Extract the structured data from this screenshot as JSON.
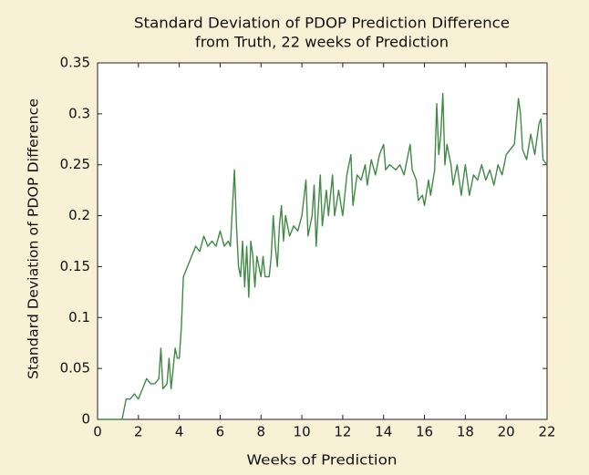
{
  "chart_data": {
    "type": "line",
    "title": [
      "Standard Deviation of PDOP Prediction Difference",
      "from Truth, 22 weeks of Prediction"
    ],
    "xlabel": "Weeks of Prediction",
    "ylabel": "Standard Deviation of PDOP Difference",
    "x": [
      0,
      1.2,
      1.3,
      1.4,
      1.6,
      1.8,
      2.0,
      2.2,
      2.4,
      2.6,
      2.8,
      3.0,
      3.1,
      3.2,
      3.4,
      3.5,
      3.6,
      3.7,
      3.8,
      3.9,
      4.0,
      4.1,
      4.2,
      4.4,
      4.6,
      4.8,
      5.0,
      5.2,
      5.4,
      5.6,
      5.8,
      6.0,
      6.2,
      6.4,
      6.5,
      6.7,
      6.8,
      6.9,
      7.0,
      7.1,
      7.2,
      7.3,
      7.4,
      7.5,
      7.6,
      7.7,
      7.8,
      7.9,
      8.0,
      8.1,
      8.2,
      8.4,
      8.5,
      8.6,
      8.7,
      8.8,
      8.9,
      9.0,
      9.1,
      9.2,
      9.4,
      9.6,
      9.8,
      10.0,
      10.2,
      10.3,
      10.5,
      10.6,
      10.7,
      10.9,
      11.0,
      11.2,
      11.3,
      11.5,
      11.6,
      11.8,
      12.0,
      12.2,
      12.4,
      12.5,
      12.7,
      12.9,
      13.1,
      13.2,
      13.4,
      13.6,
      13.8,
      14.0,
      14.1,
      14.3,
      14.6,
      14.8,
      15.0,
      15.2,
      15.3,
      15.4,
      15.6,
      15.7,
      15.9,
      16.0,
      16.2,
      16.3,
      16.5,
      16.6,
      16.7,
      16.8,
      16.9,
      17.0,
      17.1,
      17.3,
      17.4,
      17.6,
      17.8,
      18.0,
      18.2,
      18.4,
      18.6,
      18.8,
      19.0,
      19.2,
      19.4,
      19.6,
      19.8,
      20.0,
      20.2,
      20.4,
      20.6,
      20.7,
      20.8,
      21.0,
      21.2,
      21.4,
      21.6,
      21.7,
      21.8,
      22.0
    ],
    "values": [
      0,
      0,
      0.01,
      0.02,
      0.02,
      0.025,
      0.02,
      0.03,
      0.04,
      0.035,
      0.035,
      0.04,
      0.07,
      0.03,
      0.035,
      0.06,
      0.03,
      0.05,
      0.07,
      0.06,
      0.06,
      0.09,
      0.14,
      0.15,
      0.16,
      0.17,
      0.165,
      0.18,
      0.17,
      0.175,
      0.17,
      0.185,
      0.17,
      0.175,
      0.17,
      0.245,
      0.19,
      0.15,
      0.14,
      0.175,
      0.13,
      0.17,
      0.12,
      0.175,
      0.16,
      0.13,
      0.16,
      0.15,
      0.14,
      0.16,
      0.14,
      0.14,
      0.16,
      0.2,
      0.17,
      0.15,
      0.19,
      0.21,
      0.175,
      0.2,
      0.18,
      0.19,
      0.185,
      0.2,
      0.235,
      0.18,
      0.2,
      0.23,
      0.17,
      0.24,
      0.19,
      0.225,
      0.2,
      0.24,
      0.2,
      0.225,
      0.2,
      0.24,
      0.26,
      0.21,
      0.24,
      0.235,
      0.25,
      0.23,
      0.255,
      0.24,
      0.26,
      0.27,
      0.245,
      0.25,
      0.245,
      0.25,
      0.24,
      0.26,
      0.27,
      0.245,
      0.235,
      0.215,
      0.22,
      0.21,
      0.235,
      0.22,
      0.245,
      0.31,
      0.26,
      0.28,
      0.32,
      0.25,
      0.27,
      0.25,
      0.23,
      0.25,
      0.22,
      0.25,
      0.22,
      0.24,
      0.235,
      0.25,
      0.235,
      0.245,
      0.23,
      0.25,
      0.24,
      0.26,
      0.265,
      0.27,
      0.315,
      0.3,
      0.265,
      0.255,
      0.28,
      0.26,
      0.29,
      0.295,
      0.255,
      0.25
    ],
    "color": "#3f8a45",
    "xlim": [
      0,
      22
    ],
    "xticks": [
      0,
      2,
      4,
      6,
      8,
      10,
      12,
      14,
      16,
      18,
      20,
      22
    ],
    "ylim": [
      0,
      0.35
    ],
    "yticks": [
      0,
      0.05,
      0.1,
      0.15,
      0.2,
      0.25,
      0.3,
      0.35
    ],
    "grid": false
  }
}
